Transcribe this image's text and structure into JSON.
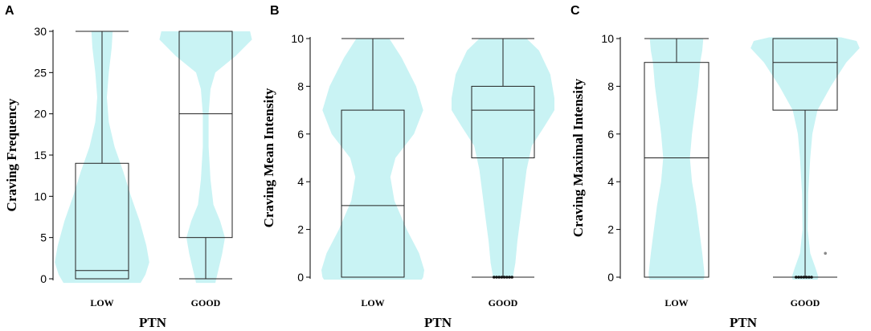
{
  "colors": {
    "violin": "#c9f3f4",
    "box": "#222222",
    "axis": "#000000"
  },
  "chart_data": [
    {
      "type": "violin-box",
      "panel": "A",
      "ylabel": "Craving Frequency",
      "xlabel": "PTN",
      "categories": [
        "LOW",
        "GOOD"
      ],
      "ylim": [
        0,
        30
      ],
      "yticks": [
        0,
        5,
        10,
        15,
        20,
        25,
        30
      ],
      "boxes": [
        {
          "category": "LOW",
          "min": 0,
          "q1": 0,
          "median": 1,
          "q3": 14,
          "max": 30,
          "outliers": []
        },
        {
          "category": "GOOD",
          "min": 0,
          "q1": 5,
          "median": 20,
          "q3": 30,
          "max": 30,
          "outliers": []
        }
      ]
    },
    {
      "type": "violin-box",
      "panel": "B",
      "ylabel": "Craving Mean Intensity",
      "xlabel": "PTN",
      "categories": [
        "LOW",
        "GOOD"
      ],
      "ylim": [
        0,
        10
      ],
      "yticks": [
        0,
        2,
        4,
        6,
        8,
        10
      ],
      "boxes": [
        {
          "category": "LOW",
          "min": 0,
          "q1": 0,
          "median": 3,
          "q3": 7,
          "max": 10,
          "outliers": []
        },
        {
          "category": "GOOD",
          "min": 0,
          "q1": 5,
          "median": 7,
          "q3": 8,
          "max": 10,
          "outliers": [
            0,
            0,
            0,
            0,
            0,
            0,
            0,
            0
          ]
        }
      ]
    },
    {
      "type": "violin-box",
      "panel": "C",
      "ylabel": "Craving Maximal Intensity",
      "xlabel": "PTN",
      "categories": [
        "LOW",
        "GOOD"
      ],
      "ylim": [
        0,
        10
      ],
      "yticks": [
        0,
        2,
        4,
        6,
        8,
        10
      ],
      "boxes": [
        {
          "category": "LOW",
          "min": 0,
          "q1": 0,
          "median": 5,
          "q3": 9,
          "max": 10,
          "outliers": []
        },
        {
          "category": "GOOD",
          "min": 0,
          "q1": 7,
          "median": 9,
          "q3": 10,
          "max": 10,
          "outliers": [
            0,
            0,
            0,
            0,
            0,
            0,
            0,
            1
          ]
        }
      ]
    }
  ]
}
